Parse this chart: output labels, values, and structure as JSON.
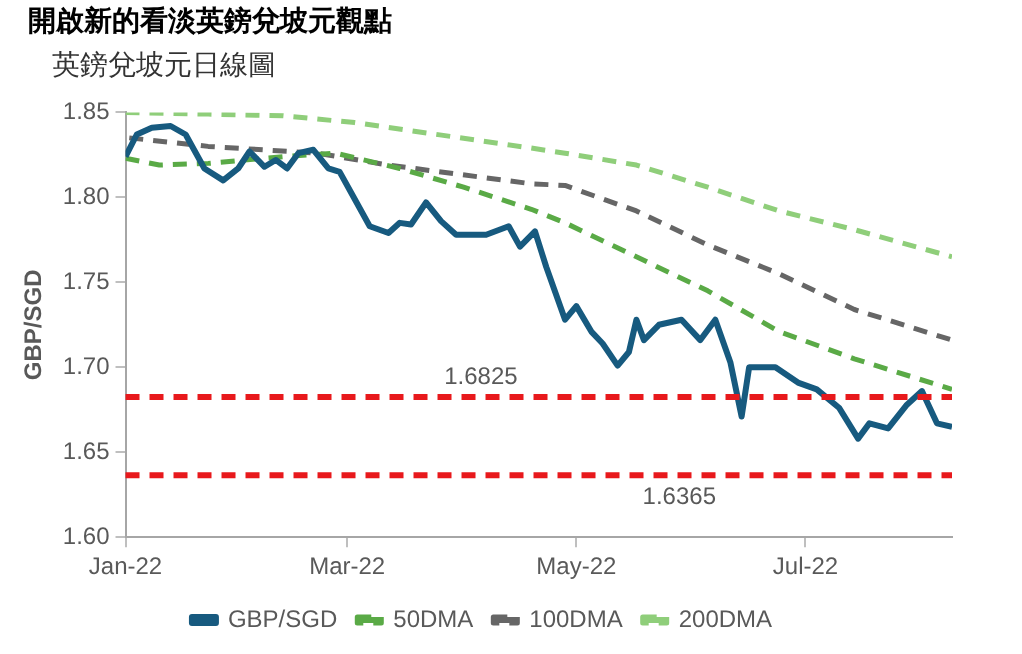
{
  "chart_data": {
    "type": "line",
    "title": "開啟新的看淡英鎊兌坡元觀點",
    "subtitle": "英鎊兌坡元日線圖",
    "ylabel": "GBP/SGD",
    "xlim": [
      "2022-01-01",
      "2022-08-09"
    ],
    "xticks": [
      {
        "value": "2022-01-01",
        "label": "Jan-22"
      },
      {
        "value": "2022-03-01",
        "label": "Mar-22"
      },
      {
        "value": "2022-05-01",
        "label": "May-22"
      },
      {
        "value": "2022-07-01",
        "label": "Jul-22"
      }
    ],
    "ylim": [
      1.6,
      1.85
    ],
    "yticks": [
      {
        "value": 1.6,
        "label": "1.60"
      },
      1.65,
      {
        "value": 1.7,
        "label": "1.70"
      },
      1.75,
      {
        "value": 1.8,
        "label": "1.80"
      },
      1.85
    ],
    "grid": false,
    "legend": "bottom",
    "marker": "none",
    "series": [
      {
        "name": "GBP/SGD",
        "color": "#175a7f",
        "line_style": "solid",
        "x": [
          "2022-01-01",
          "2022-01-04",
          "2022-01-08",
          "2022-01-13",
          "2022-01-17",
          "2022-01-22",
          "2022-01-27",
          "2022-01-31",
          "2022-02-03",
          "2022-02-07",
          "2022-02-10",
          "2022-02-13",
          "2022-02-16",
          "2022-02-20",
          "2022-02-24",
          "2022-02-27",
          "2022-03-02",
          "2022-03-07",
          "2022-03-12",
          "2022-03-15",
          "2022-03-18",
          "2022-03-22",
          "2022-03-26",
          "2022-03-30",
          "2022-04-07",
          "2022-04-13",
          "2022-04-16",
          "2022-04-20",
          "2022-04-23",
          "2022-04-28",
          "2022-05-01",
          "2022-05-05",
          "2022-05-08",
          "2022-05-12",
          "2022-05-15",
          "2022-05-17",
          "2022-05-19",
          "2022-05-23",
          "2022-05-29",
          "2022-06-03",
          "2022-06-07",
          "2022-06-11",
          "2022-06-14",
          "2022-06-16",
          "2022-06-23",
          "2022-06-29",
          "2022-07-04",
          "2022-07-10",
          "2022-07-15",
          "2022-07-18",
          "2022-07-23",
          "2022-07-28",
          "2022-08-01",
          "2022-08-05",
          "2022-08-09"
        ],
        "values": [
          1.824,
          1.837,
          1.841,
          1.842,
          1.837,
          1.817,
          1.81,
          1.817,
          1.827,
          1.818,
          1.822,
          1.817,
          1.826,
          1.828,
          1.817,
          1.815,
          1.803,
          1.783,
          1.779,
          1.785,
          1.784,
          1.797,
          1.786,
          1.778,
          1.778,
          1.783,
          1.771,
          1.78,
          1.759,
          1.728,
          1.736,
          1.721,
          1.714,
          1.701,
          1.709,
          1.728,
          1.716,
          1.725,
          1.728,
          1.716,
          1.728,
          1.703,
          1.671,
          1.7,
          1.7,
          1.691,
          1.687,
          1.676,
          1.658,
          1.667,
          1.664,
          1.678,
          1.686,
          1.667,
          1.665
        ]
      },
      {
        "name": "50DMA",
        "color": "#5aaa46",
        "line_style": "dashed",
        "x": [
          "2022-01-01",
          "2022-01-10",
          "2022-01-23",
          "2022-02-12",
          "2022-02-26",
          "2022-03-15",
          "2022-04-01",
          "2022-04-19",
          "2022-04-28",
          "2022-05-17",
          "2022-06-05",
          "2022-06-24",
          "2022-07-14",
          "2022-08-09"
        ],
        "values": [
          1.823,
          1.819,
          1.82,
          1.824,
          1.826,
          1.817,
          1.806,
          1.793,
          1.785,
          1.765,
          1.745,
          1.721,
          1.705,
          1.687
        ]
      },
      {
        "name": "100DMA",
        "color": "#666666",
        "line_style": "dashed",
        "x": [
          "2022-01-02",
          "2022-01-23",
          "2022-02-21",
          "2022-03-12",
          "2022-04-19",
          "2022-04-28",
          "2022-05-17",
          "2022-06-05",
          "2022-06-24",
          "2022-07-14",
          "2022-08-09"
        ],
        "values": [
          1.835,
          1.83,
          1.826,
          1.819,
          1.808,
          1.807,
          1.792,
          1.772,
          1.755,
          1.734,
          1.716
        ]
      },
      {
        "name": "200DMA",
        "color": "#8fce7a",
        "line_style": "dashed",
        "x": [
          "2022-01-01",
          "2022-01-23",
          "2022-02-12",
          "2022-03-03",
          "2022-04-19",
          "2022-04-28",
          "2022-05-17",
          "2022-06-05",
          "2022-06-24",
          "2022-07-14",
          "2022-08-09"
        ],
        "values": [
          1.85,
          1.849,
          1.848,
          1.844,
          1.829,
          1.826,
          1.819,
          1.806,
          1.792,
          1.781,
          1.765
        ]
      }
    ],
    "ref_lines": [
      {
        "axis": "y",
        "value": 1.6825,
        "label": "1.6825",
        "color": "#e8191c",
        "line_style": "dashed"
      },
      {
        "axis": "y",
        "value": 1.6365,
        "label": "1.6365",
        "color": "#e8191c",
        "line_style": "dashed"
      }
    ]
  }
}
